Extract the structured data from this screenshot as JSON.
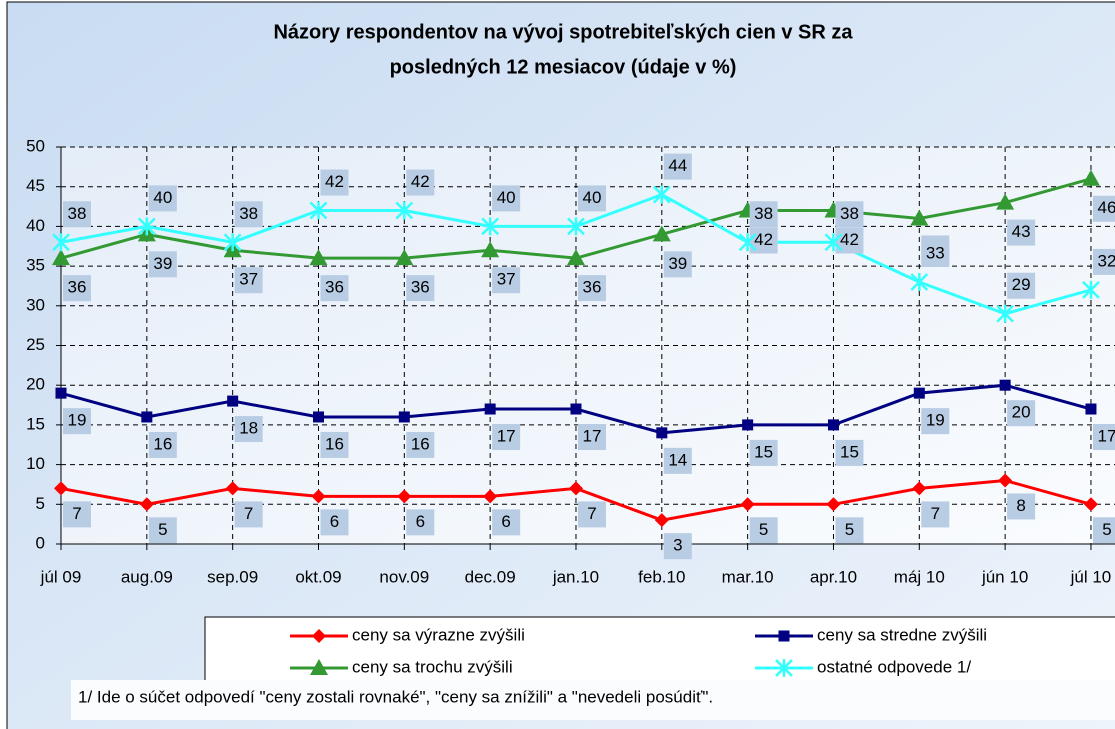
{
  "chart_data": {
    "type": "line",
    "title": [
      "Názory respondentov na vývoj spotrebiteľských cien v SR za",
      "posledných 12 mesiacov (údaje v %)"
    ],
    "categories": [
      "júl 09",
      "aug.09",
      "sep.09",
      "okt.09",
      "nov.09",
      "dec.09",
      "jan.10",
      "feb.10",
      "mar.10",
      "apr.10",
      "máj 10",
      "jún 10",
      "júl 10"
    ],
    "series": [
      {
        "name": "ceny sa výrazne zvýšili",
        "color": "#ff0000",
        "marker": "diamond",
        "values": [
          7,
          5,
          7,
          6,
          6,
          6,
          7,
          3,
          5,
          5,
          7,
          8,
          5
        ]
      },
      {
        "name": "ceny sa stredne zvýšili",
        "color": "#000080",
        "marker": "square",
        "values": [
          19,
          16,
          18,
          16,
          16,
          17,
          17,
          14,
          15,
          15,
          19,
          20,
          17
        ]
      },
      {
        "name": "ceny sa trochu zvýšili",
        "color": "#339933",
        "marker": "triangle",
        "values": [
          36,
          39,
          37,
          36,
          36,
          37,
          36,
          39,
          42,
          42,
          41,
          43,
          46
        ]
      },
      {
        "name": "ostatné odpovede 1/",
        "color": "#33ffff",
        "marker": "star",
        "values": [
          38,
          40,
          38,
          42,
          42,
          40,
          40,
          44,
          38,
          38,
          33,
          29,
          32
        ]
      }
    ],
    "ylim": [
      0,
      50
    ],
    "yticks": [
      0,
      5,
      10,
      15,
      20,
      25,
      30,
      35,
      40,
      45,
      50
    ],
    "grid": true,
    "legend": "bottom",
    "footnote": "1/ Ide o súčet odpovedí \"ceny zostali rovnaké\", \"ceny sa znížili\" a \"nevedeli posúdiť\"."
  }
}
